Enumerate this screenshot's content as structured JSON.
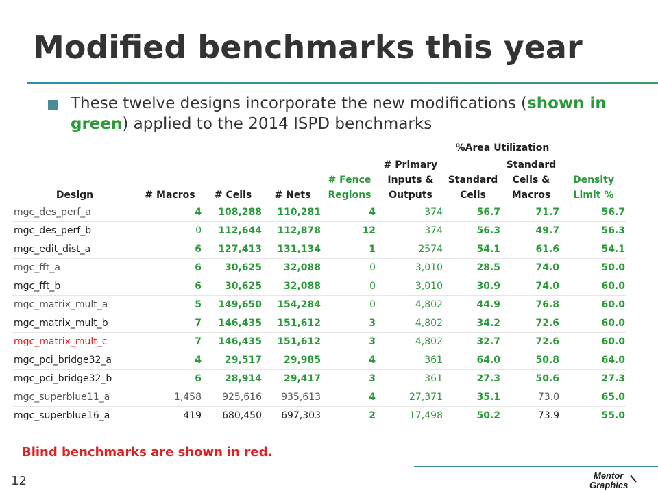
{
  "slide": {
    "title": "Modified benchmarks this year",
    "subtitle_part1": "These twelve designs incorporate the new modifications (",
    "subtitle_green": "shown in green",
    "subtitle_part2": ") applied to the 2014 ISPD benchmarks",
    "blind_note": "Blind benchmarks are shown in red.",
    "page_number": "12",
    "logo_text": "Mentor Graphics"
  },
  "table": {
    "group_header": "%Area Utilization",
    "headers": {
      "design": "Design",
      "macros": "# Macros",
      "cells": "# Cells",
      "nets": "# Nets",
      "fence": "# Fence Regions",
      "io": "# Primary Inputs & Outputs",
      "std_cells": "Standard Cells",
      "std_macros": "Standard Cells & Macros",
      "density": "Density Limit %"
    },
    "rows": [
      {
        "design": "mgc_des_perf_a",
        "macros": "4",
        "cells": "108,288",
        "nets": "110,281",
        "fence": "4",
        "io": "374",
        "std": "56.7",
        "stdmac": "71.7",
        "density": "56.7"
      },
      {
        "design": "mgc_des_perf_b",
        "macros": "0",
        "cells": "112,644",
        "nets": "112,878",
        "fence": "12",
        "io": "374",
        "std": "56.3",
        "stdmac": "49.7",
        "density": "56.3"
      },
      {
        "design": "mgc_edit_dist_a",
        "macros": "6",
        "cells": "127,413",
        "nets": "131,134",
        "fence": "1",
        "io": "2574",
        "std": "54.1",
        "stdmac": "61.6",
        "density": "54.1"
      },
      {
        "design": "mgc_fft_a",
        "macros": "6",
        "cells": "30,625",
        "nets": "32,088",
        "fence": "0",
        "io": "3,010",
        "std": "28.5",
        "stdmac": "74.0",
        "density": "50.0"
      },
      {
        "design": "mgc_fft_b",
        "macros": "6",
        "cells": "30,625",
        "nets": "32,088",
        "fence": "0",
        "io": "3,010",
        "std": "30.9",
        "stdmac": "74.0",
        "density": "60.0"
      },
      {
        "design": "mgc_matrix_mult_a",
        "macros": "5",
        "cells": "149,650",
        "nets": "154,284",
        "fence": "0",
        "io": "4,802",
        "std": "44.9",
        "stdmac": "76.8",
        "density": "60.0"
      },
      {
        "design": "mgc_matrix_mult_b",
        "macros": "7",
        "cells": "146,435",
        "nets": "151,612",
        "fence": "3",
        "io": "4,802",
        "std": "34.2",
        "stdmac": "72.6",
        "density": "60.0"
      },
      {
        "design": "mgc_matrix_mult_c",
        "macros": "7",
        "cells": "146,435",
        "nets": "151,612",
        "fence": "3",
        "io": "4,802",
        "std": "32.7",
        "stdmac": "72.6",
        "density": "60.0"
      },
      {
        "design": "mgc_pci_bridge32_a",
        "macros": "4",
        "cells": "29,517",
        "nets": "29,985",
        "fence": "4",
        "io": "361",
        "std": "64.0",
        "stdmac": "50.8",
        "density": "64.0"
      },
      {
        "design": "mgc_pci_bridge32_b",
        "macros": "6",
        "cells": "28,914",
        "nets": "29,417",
        "fence": "3",
        "io": "361",
        "std": "27.3",
        "stdmac": "50.6",
        "density": "27.3"
      },
      {
        "design": "mgc_superblue11_a",
        "macros": "1,458",
        "cells": "925,616",
        "nets": "935,613",
        "fence": "4",
        "io": "27,371",
        "std": "35.1",
        "stdmac": "73.0",
        "density": "65.0"
      },
      {
        "design": "mgc_superblue16_a",
        "macros": "419",
        "cells": "680,450",
        "nets": "697,303",
        "fence": "2",
        "io": "17,498",
        "std": "50.2",
        "stdmac": "73.9",
        "density": "55.0"
      }
    ]
  },
  "colors": {
    "green": "#2a9a3a",
    "red": "#e02020",
    "header_blue": "#dfe9f5",
    "rule_teal": "#3c8ba0"
  }
}
